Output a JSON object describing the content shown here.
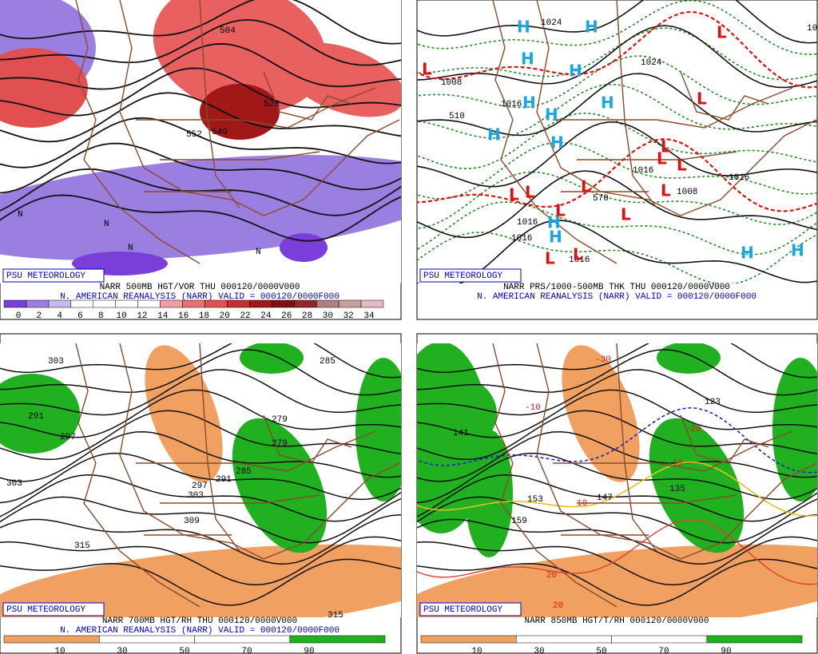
{
  "panels": [
    {
      "credit": "PSU METEOROLOGY",
      "caption": [
        "NARR 500MB HGT/VOR THU 000120/0000V000",
        "N. AMERICAN REANALYSIS (NARR) VALID = 000120/0000F000"
      ],
      "colorbar": [
        0,
        2,
        4,
        6,
        8,
        10,
        12,
        14,
        16,
        18,
        20,
        22,
        24,
        26,
        28,
        30,
        32,
        34
      ],
      "labels": [
        "504",
        "552",
        "540",
        "528",
        "N",
        "N",
        "N",
        "N"
      ]
    },
    {
      "credit": "PSU METEOROLOGY",
      "caption": [
        "NARR PRS/1000-500MB THK THU 000120/0000V000",
        "N. AMERICAN REANALYSIS (NARR) VALID = 000120/0000F000"
      ],
      "labels": [
        "1024",
        "1008",
        "1024",
        "1016",
        "1016",
        "1008",
        "1016",
        "1016",
        "1016",
        "1016",
        "510",
        "570",
        "1008"
      ],
      "highs": [
        "H",
        "H",
        "H",
        "H",
        "H",
        "H",
        "H",
        "H",
        "H",
        "H",
        "H",
        "H",
        "H"
      ],
      "lows": [
        "L",
        "L",
        "L",
        "L",
        "L",
        "L",
        "L",
        "L",
        "L",
        "L",
        "L",
        "L",
        "L",
        "L"
      ]
    },
    {
      "credit": "PSU METEOROLOGY",
      "caption": [
        "NARR 700MB HGT/RH THU 000120/0000V000",
        "N. AMERICAN REANALYSIS (NARR) VALID = 000120/0000F000"
      ],
      "colorbar": [
        10,
        30,
        50,
        70,
        90
      ],
      "labels": [
        "303",
        "291",
        "297",
        "303",
        "303",
        "309",
        "315",
        "279",
        "279",
        "285",
        "291",
        "297",
        "315",
        "285"
      ]
    },
    {
      "credit": "PSU METEOROLOGY",
      "caption": [
        "NARR 850MB HGT/T/RH 000120/0000V000"
      ],
      "colorbar": [
        10,
        30,
        50,
        70,
        90
      ],
      "labels": [
        "-30",
        "-10",
        "-20",
        "-10",
        "10",
        "20",
        "20",
        "153",
        "147",
        "135",
        "123",
        "141",
        "159"
      ]
    }
  ]
}
